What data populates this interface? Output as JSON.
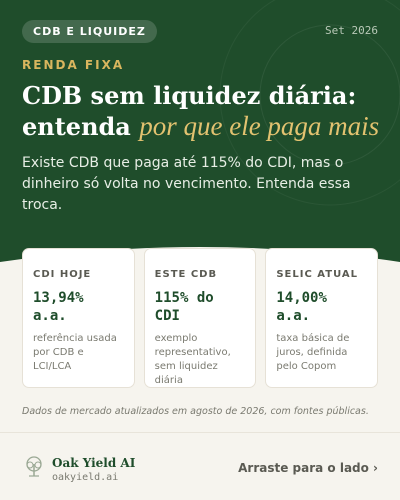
{
  "header": {
    "badge": "CDB E LIQUIDEZ",
    "date": "Set 2026"
  },
  "kicker": "RENDA FIXA",
  "headline": {
    "line1": "CDB sem liquidez diária:",
    "line2": "entenda",
    "emphasis": "por que ele paga mais"
  },
  "intro": "Existe CDB que paga até 115% do CDI, mas o dinheiro só volta no vencimento. Entenda essa troca.",
  "cards": [
    {
      "label": "CDI HOJE",
      "value": "13,94% a.a.",
      "note": "referência usada por CDB e LCI/LCA"
    },
    {
      "label": "ESTE CDB",
      "value": "115% do CDI",
      "note": "exemplo representativo, sem liquidez diária"
    },
    {
      "label": "SELIC ATUAL",
      "value": "14,00% a.a.",
      "note": "taxa básica de juros, definida pelo Copom"
    }
  ],
  "footnote": "Dados de mercado atualizados em agosto de 2026, com fontes públicas.",
  "footer": {
    "brand": "Oak Yield AI",
    "site": "oakyield.ai",
    "cta": "Arraste para o lado ›"
  }
}
